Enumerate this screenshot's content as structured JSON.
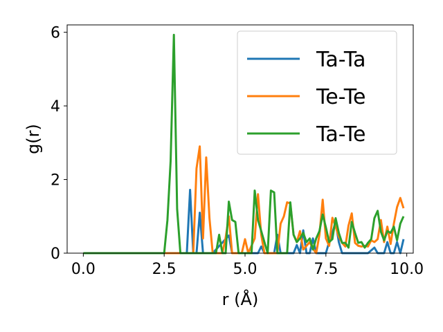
{
  "chart_data": {
    "type": "line",
    "title": "",
    "xlabel": "r (Å)",
    "ylabel": "g(r)",
    "xlim": [
      -0.5,
      10.2
    ],
    "ylim": [
      0,
      6.2
    ],
    "xticks": [
      0.0,
      2.5,
      5.0,
      7.5,
      10.0
    ],
    "xtick_labels": [
      "0.0",
      "2.5",
      "5.0",
      "7.5",
      "10.0"
    ],
    "yticks": [
      0,
      2,
      4,
      6
    ],
    "ytick_labels": [
      "0",
      "2",
      "4",
      "6"
    ],
    "grid": false,
    "legend_position": "top-right",
    "series": [
      {
        "name": "Ta-Ta",
        "color": "#1f77b4",
        "points": [
          [
            0,
            0
          ],
          [
            2.5,
            0
          ],
          [
            3.0,
            0
          ],
          [
            3.2,
            0
          ],
          [
            3.3,
            1.72
          ],
          [
            3.4,
            0
          ],
          [
            3.5,
            0
          ],
          [
            3.6,
            1.1
          ],
          [
            3.7,
            0
          ],
          [
            4.0,
            0
          ],
          [
            4.5,
            0.48
          ],
          [
            4.6,
            0
          ],
          [
            5.0,
            0
          ],
          [
            5.4,
            0
          ],
          [
            5.5,
            0.18
          ],
          [
            5.6,
            0
          ],
          [
            5.9,
            0
          ],
          [
            6.0,
            0.5
          ],
          [
            6.1,
            0
          ],
          [
            6.5,
            0
          ],
          [
            6.6,
            0.22
          ],
          [
            6.7,
            0
          ],
          [
            6.8,
            0.62
          ],
          [
            6.9,
            0
          ],
          [
            7.0,
            0
          ],
          [
            7.1,
            0.4
          ],
          [
            7.2,
            0
          ],
          [
            7.5,
            0
          ],
          [
            7.6,
            0.3
          ],
          [
            7.7,
            0.55
          ],
          [
            7.8,
            0.85
          ],
          [
            7.9,
            0.3
          ],
          [
            8.0,
            0
          ],
          [
            8.8,
            0
          ],
          [
            9.0,
            0.15
          ],
          [
            9.1,
            0
          ],
          [
            9.3,
            0
          ],
          [
            9.4,
            0.3
          ],
          [
            9.5,
            0
          ],
          [
            9.6,
            0
          ],
          [
            9.7,
            0.3
          ],
          [
            9.8,
            0
          ],
          [
            9.9,
            0.38
          ]
        ]
      },
      {
        "name": "Te-Te",
        "color": "#ff7f0e",
        "points": [
          [
            0,
            0
          ],
          [
            2.5,
            0
          ],
          [
            3.4,
            0
          ],
          [
            3.5,
            2.3
          ],
          [
            3.6,
            2.9
          ],
          [
            3.7,
            0.4
          ],
          [
            3.8,
            2.6
          ],
          [
            3.9,
            0.95
          ],
          [
            4.0,
            0
          ],
          [
            4.3,
            0
          ],
          [
            4.4,
            0.42
          ],
          [
            4.5,
            1.0
          ],
          [
            4.6,
            0
          ],
          [
            4.9,
            0
          ],
          [
            5.0,
            0.38
          ],
          [
            5.1,
            0
          ],
          [
            5.3,
            0.4
          ],
          [
            5.4,
            1.6
          ],
          [
            5.5,
            0.5
          ],
          [
            5.6,
            0
          ],
          [
            6.0,
            0
          ],
          [
            6.1,
            0.8
          ],
          [
            6.2,
            1.0
          ],
          [
            6.3,
            1.38
          ],
          [
            6.4,
            1.35
          ],
          [
            6.5,
            0.5
          ],
          [
            6.6,
            0.3
          ],
          [
            6.7,
            0.6
          ],
          [
            6.8,
            0.1
          ],
          [
            6.9,
            0.2
          ],
          [
            7.0,
            0.3
          ],
          [
            7.1,
            0.12
          ],
          [
            7.2,
            0
          ],
          [
            7.3,
            0.5
          ],
          [
            7.4,
            1.45
          ],
          [
            7.5,
            0.4
          ],
          [
            7.6,
            0.2
          ],
          [
            7.7,
            0.96
          ],
          [
            7.8,
            0.72
          ],
          [
            7.9,
            0.45
          ],
          [
            8.0,
            0.28
          ],
          [
            8.1,
            0.18
          ],
          [
            8.2,
            0.75
          ],
          [
            8.3,
            1.08
          ],
          [
            8.4,
            0.28
          ],
          [
            8.5,
            0.2
          ],
          [
            8.6,
            0.18
          ],
          [
            8.7,
            0.2
          ],
          [
            8.8,
            0.18
          ],
          [
            8.9,
            0.35
          ],
          [
            9.0,
            0.3
          ],
          [
            9.1,
            0.38
          ],
          [
            9.2,
            0.9
          ],
          [
            9.3,
            0.3
          ],
          [
            9.4,
            0.72
          ],
          [
            9.5,
            0.25
          ],
          [
            9.6,
            0.8
          ],
          [
            9.7,
            1.25
          ],
          [
            9.8,
            1.5
          ],
          [
            9.9,
            1.22
          ]
        ]
      },
      {
        "name": "Ta-Te",
        "color": "#2ca02c",
        "points": [
          [
            0,
            0
          ],
          [
            2.5,
            0
          ],
          [
            2.6,
            0.9
          ],
          [
            2.7,
            2.5
          ],
          [
            2.8,
            5.93
          ],
          [
            2.9,
            1.2
          ],
          [
            3.0,
            0
          ],
          [
            4.1,
            0
          ],
          [
            4.2,
            0.5
          ],
          [
            4.3,
            0
          ],
          [
            4.4,
            0
          ],
          [
            4.5,
            1.4
          ],
          [
            4.6,
            0.9
          ],
          [
            4.7,
            0.85
          ],
          [
            4.8,
            0
          ],
          [
            5.2,
            0
          ],
          [
            5.3,
            1.7
          ],
          [
            5.4,
            0.9
          ],
          [
            5.5,
            0.6
          ],
          [
            5.6,
            0.3
          ],
          [
            5.7,
            0
          ],
          [
            5.8,
            1.7
          ],
          [
            5.9,
            1.65
          ],
          [
            6.0,
            0
          ],
          [
            6.3,
            0
          ],
          [
            6.4,
            1.38
          ],
          [
            6.5,
            0.5
          ],
          [
            6.6,
            0.3
          ],
          [
            6.7,
            0.4
          ],
          [
            6.8,
            0.55
          ],
          [
            6.9,
            0.3
          ],
          [
            7.0,
            0.4
          ],
          [
            7.1,
            0.1
          ],
          [
            7.2,
            0.4
          ],
          [
            7.3,
            0.6
          ],
          [
            7.4,
            1.05
          ],
          [
            7.5,
            0.7
          ],
          [
            7.6,
            0.3
          ],
          [
            7.7,
            0.38
          ],
          [
            7.8,
            0.95
          ],
          [
            7.9,
            0.55
          ],
          [
            8.0,
            0.28
          ],
          [
            8.1,
            0.28
          ],
          [
            8.2,
            0.15
          ],
          [
            8.3,
            0.85
          ],
          [
            8.4,
            0.55
          ],
          [
            8.5,
            0.28
          ],
          [
            8.6,
            0.3
          ],
          [
            8.7,
            0.15
          ],
          [
            8.8,
            0.28
          ],
          [
            8.9,
            0.38
          ],
          [
            9.0,
            0.95
          ],
          [
            9.1,
            1.15
          ],
          [
            9.2,
            0.58
          ],
          [
            9.3,
            0.35
          ],
          [
            9.4,
            0.6
          ],
          [
            9.5,
            0.55
          ],
          [
            9.6,
            0.72
          ],
          [
            9.7,
            0.35
          ],
          [
            9.8,
            0.8
          ],
          [
            9.9,
            1.0
          ]
        ]
      }
    ]
  }
}
